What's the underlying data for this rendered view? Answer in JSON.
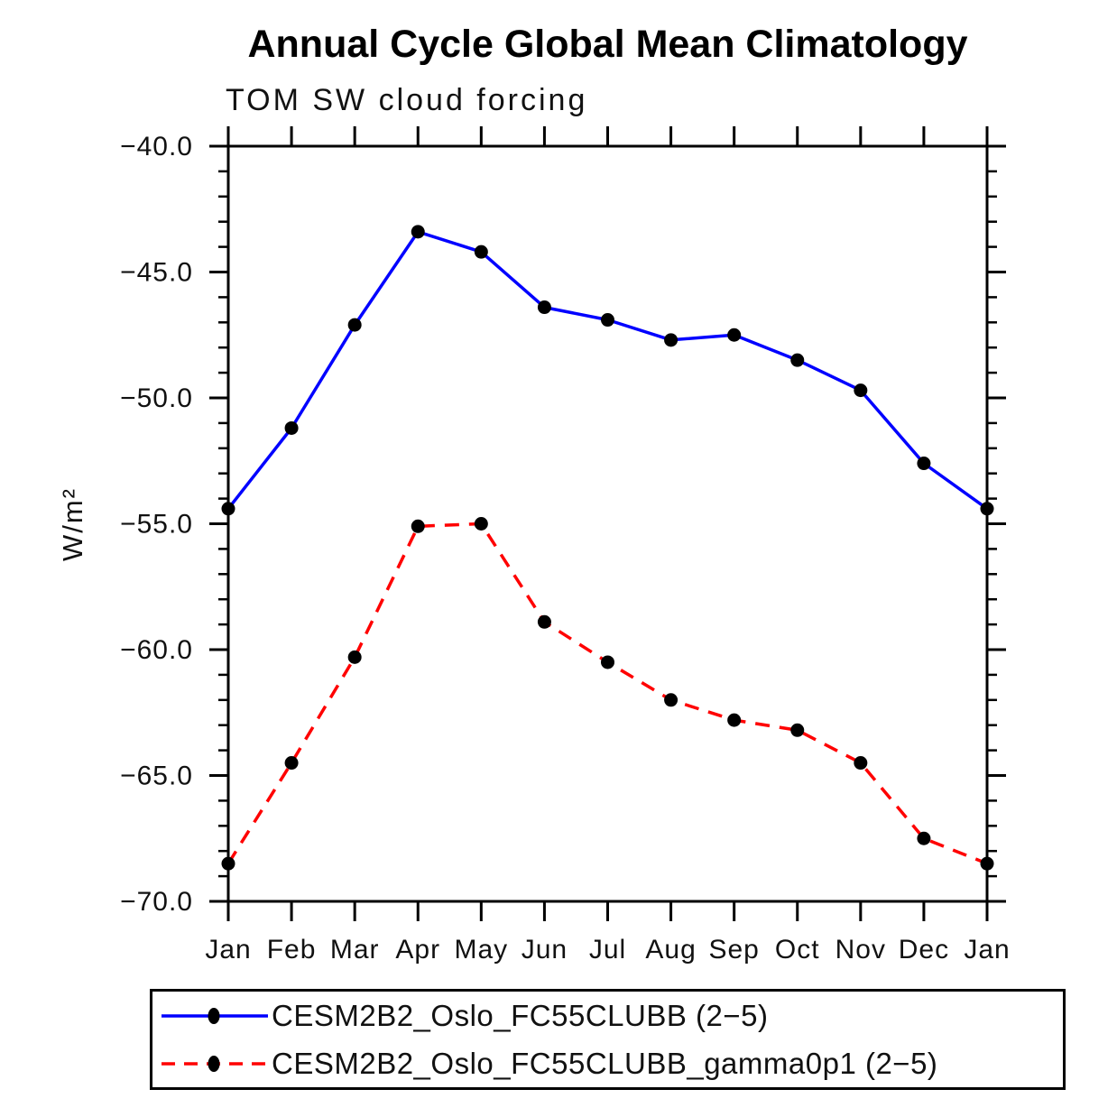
{
  "page": {
    "background_color": "#ffffff",
    "text_color": "#000000"
  },
  "chart_data": {
    "type": "line",
    "title": "Annual Cycle Global Mean Climatology",
    "subtitle": "TOM SW cloud forcing",
    "xlabel": "",
    "ylabel": "W/m²",
    "categories": [
      "Jan",
      "Feb",
      "Mar",
      "Apr",
      "May",
      "Jun",
      "Jul",
      "Aug",
      "Sep",
      "Oct",
      "Nov",
      "Dec",
      "Jan"
    ],
    "series": [
      {
        "name": "CESM2B2_Oslo_FC55CLUBB (2−5)",
        "line_color": "#0000ff",
        "line_style": "solid",
        "marker": "filled-circle",
        "marker_color": "#000000",
        "values": [
          -54.4,
          -51.2,
          -47.1,
          -43.4,
          -44.2,
          -46.4,
          -46.9,
          -47.7,
          -47.5,
          -48.5,
          -49.7,
          -52.6,
          -54.4
        ]
      },
      {
        "name": "CESM2B2_Oslo_FC55CLUBB_gamma0p1 (2−5)",
        "line_color": "#ff0000",
        "line_style": "dashed",
        "marker": "filled-circle",
        "marker_color": "#000000",
        "values": [
          -68.5,
          -64.5,
          -60.3,
          -55.1,
          -55.0,
          -58.9,
          -60.5,
          -62.0,
          -62.8,
          -63.2,
          -64.5,
          -67.5,
          -68.5
        ]
      }
    ],
    "ylim": [
      -70.0,
      -40.0
    ],
    "ytick_major_interval": 5.0,
    "ytick_minor_interval": 1.0,
    "ytick_labels": [
      "−40.0",
      "−45.0",
      "−50.0",
      "−55.0",
      "−60.0",
      "−65.0",
      "−70.0"
    ],
    "axis_color": "#000000",
    "grid": false,
    "tick_direction": "out",
    "legend_position": "bottom"
  }
}
